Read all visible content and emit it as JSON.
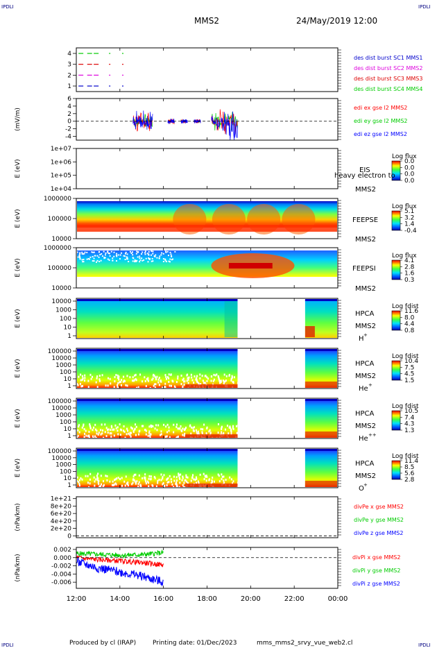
{
  "corner_label": "IPDLI",
  "header": {
    "spacecraft": "MMS2",
    "date": "24/May/2019 12:00"
  },
  "footer": {
    "producer": "Produced by cl (IRAP)",
    "printing_date": "Printing date: 01/Dec/2023",
    "script_name": "mms_mms2_srvy_vue_web2.cl"
  },
  "x_axis": {
    "ticks": [
      "12:00",
      "14:00",
      "16:00",
      "18:00",
      "20:00",
      "22:00",
      "00:00"
    ],
    "range_hours": [
      12,
      24
    ]
  },
  "colors": {
    "mms1": "#0000cc",
    "mms2": "#dd00dd",
    "mms3": "#dd0000",
    "mms4": "#00cc00",
    "ex": "#ff0000",
    "ey": "#00cc00",
    "ez": "#0000ff"
  },
  "panels": {
    "burst": {
      "yticks": [
        "4",
        "3",
        "2",
        "1"
      ],
      "legend": [
        {
          "text": "des dist burst SC1 MMS1",
          "color": "#0000cc"
        },
        {
          "text": "des dist burst SC2 MMS2",
          "color": "#dd00dd"
        },
        {
          "text": "des dist burst SC3 MMS3",
          "color": "#dd0000"
        },
        {
          "text": "des dist burst SC4 MMS4",
          "color": "#00cc00"
        }
      ]
    },
    "efield": {
      "ylabel": "(mV/m)",
      "yticks": [
        "6",
        "4",
        "2",
        "0",
        "-2",
        "-4"
      ],
      "legend": [
        {
          "text": "edi ex gse l2 MMS2",
          "color": "#ff0000"
        },
        {
          "text": "edi ey gse l2 MMS2",
          "color": "#00cc00"
        },
        {
          "text": "edi ez gse l2 MMS2",
          "color": "#0000ff"
        }
      ]
    },
    "eis": {
      "ylabel": "E (eV)",
      "yticks": [
        "1e+07",
        "1e+06",
        "1e+05",
        "1e+04"
      ],
      "instrument": "EIS",
      "spacecraft": "MMS2",
      "overlay_text": "heavy electron to",
      "colorbar_title": "Log flux",
      "colorbar_ticks": [
        "0.0",
        "0.0",
        "0.0",
        "0.0"
      ]
    },
    "feepse": {
      "ylabel": "E (eV)",
      "yticks": [
        "1000000",
        "100000",
        "10000"
      ],
      "instrument": "FEEPSE",
      "spacecraft": "MMS2",
      "colorbar_title": "Log flux",
      "colorbar_ticks": [
        "5.1",
        "3.2",
        "1.4",
        "-0.4"
      ]
    },
    "feepsi": {
      "ylabel": "E (eV)",
      "yticks": [
        "1000000",
        "100000",
        "10000"
      ],
      "instrument": "FEEPSI",
      "spacecraft": "MMS2",
      "colorbar_title": "Log flux",
      "colorbar_ticks": [
        "4.1",
        "2.8",
        "1.6",
        "0.3"
      ]
    },
    "hpca_h": {
      "ylabel": "E (eV)",
      "yticks": [
        "10000",
        "1000",
        "100",
        "10",
        "1"
      ],
      "instrument": "HPCA",
      "spacecraft": "MMS2",
      "species": "H",
      "charge": "+",
      "colorbar_title": "Log fdist",
      "colorbar_ticks": [
        "11.6",
        "8.0",
        "4.4",
        "0.8"
      ]
    },
    "hpca_he": {
      "ylabel": "E (eV)",
      "yticks": [
        "100000",
        "10000",
        "1000",
        "100",
        "10",
        "1"
      ],
      "instrument": "HPCA",
      "spacecraft": "MMS2",
      "species": "He",
      "charge": "+",
      "colorbar_title": "Log fdist",
      "colorbar_ticks": [
        "10.4",
        "7.5",
        "4.5",
        "1.5"
      ]
    },
    "hpca_he2": {
      "ylabel": "E (eV)",
      "yticks": [
        "100000",
        "10000",
        "1000",
        "100",
        "10",
        "1"
      ],
      "instrument": "HPCA",
      "spacecraft": "MMS2",
      "species": "He",
      "charge": "++",
      "colorbar_title": "Log fdist",
      "colorbar_ticks": [
        "10.5",
        "7.4",
        "4.3",
        "1.3"
      ]
    },
    "hpca_o": {
      "ylabel": "E (eV)",
      "yticks": [
        "100000",
        "10000",
        "1000",
        "100",
        "10",
        "1"
      ],
      "instrument": "HPCA",
      "spacecraft": "MMS2",
      "species": "O",
      "charge": "+",
      "colorbar_title": "Log fdist",
      "colorbar_ticks": [
        "11.4",
        "8.5",
        "5.6",
        "2.8"
      ]
    },
    "divpe": {
      "ylabel": "(nPa/km)",
      "yticks": [
        "1e+21",
        "8e+20",
        "6e+20",
        "4e+20",
        "2e+20",
        "0"
      ],
      "legend": [
        {
          "text": "divPe x gse MMS2",
          "color": "#ff0000"
        },
        {
          "text": "divPe y gse MMS2",
          "color": "#00cc00"
        },
        {
          "text": "divPe z gse MMS2",
          "color": "#0000ff"
        }
      ]
    },
    "divpi": {
      "ylabel": "(nPa/km)",
      "yticks": [
        "0.002",
        "0.000",
        "-0.002",
        "-0.004",
        "-0.006"
      ],
      "legend": [
        {
          "text": "divPi x gse MMS2",
          "color": "#ff0000"
        },
        {
          "text": "divPi y gse MMS2",
          "color": "#00cc00"
        },
        {
          "text": "divPi z gse MMS2",
          "color": "#0000ff"
        }
      ]
    }
  },
  "chart_data": [
    {
      "type": "scatter",
      "title": "",
      "series": [
        {
          "name": "des dist burst SC1 MMS1",
          "y": 1,
          "x_hours": [
            12.1,
            12.5,
            12.8,
            13.5,
            14.1
          ]
        },
        {
          "name": "des dist burst SC2 MMS2",
          "y": 2,
          "x_hours": [
            12.1,
            12.5,
            12.8,
            13.5,
            14.1
          ]
        },
        {
          "name": "des dist burst SC3 MMS3",
          "y": 3,
          "x_hours": [
            12.1,
            12.5,
            12.8,
            13.5,
            14.1
          ]
        },
        {
          "name": "des dist burst SC4 MMS4",
          "y": 4,
          "x_hours": [
            12.1,
            12.5,
            12.8,
            13.5,
            14.1
          ]
        }
      ],
      "ylim": [
        0.5,
        4.5
      ]
    },
    {
      "type": "line",
      "ylabel": "(mV/m)",
      "ylim": [
        -5,
        6
      ],
      "x_hours_range": [
        14.6,
        19.4
      ],
      "series": [
        {
          "name": "edi ex gse l2 MMS2"
        },
        {
          "name": "edi ey gse l2 MMS2"
        },
        {
          "name": "edi ez gse l2 MMS2"
        }
      ]
    },
    {
      "type": "heatmap",
      "ylabel": "E (eV)",
      "instrument": "EIS",
      "ylim_log10": [
        4,
        7
      ]
    },
    {
      "type": "heatmap",
      "ylabel": "E (eV)",
      "instrument": "FEEPSE",
      "ylim_log10": [
        4,
        6
      ],
      "clim": [
        -0.4,
        5.1
      ]
    },
    {
      "type": "heatmap",
      "ylabel": "E (eV)",
      "instrument": "FEEPSI",
      "ylim_log10": [
        4,
        6
      ],
      "clim": [
        0.3,
        4.1
      ]
    },
    {
      "type": "heatmap",
      "ylabel": "E (eV)",
      "instrument": "HPCA H+",
      "ylim_log10": [
        0,
        4.4
      ],
      "data_gap_hours": [
        19.4,
        22.5
      ],
      "clim": [
        0.8,
        11.6
      ]
    },
    {
      "type": "heatmap",
      "ylabel": "E (eV)",
      "instrument": "HPCA He+",
      "ylim_log10": [
        0,
        5
      ],
      "data_gap_hours": [
        19.4,
        22.5
      ],
      "clim": [
        1.5,
        10.4
      ]
    },
    {
      "type": "heatmap",
      "ylabel": "E (eV)",
      "instrument": "HPCA He++",
      "ylim_log10": [
        0,
        5
      ],
      "data_gap_hours": [
        19.4,
        22.5
      ],
      "clim": [
        1.3,
        10.5
      ]
    },
    {
      "type": "heatmap",
      "ylabel": "E (eV)",
      "instrument": "HPCA O+",
      "ylim_log10": [
        0,
        5
      ],
      "data_gap_hours": [
        19.4,
        22.5
      ],
      "clim": [
        2.8,
        11.4
      ]
    },
    {
      "type": "line",
      "ylabel": "(nPa/km)",
      "ylim": [
        -5e+19,
        1.05e+21
      ],
      "series": [
        {
          "name": "divPe x gse MMS2"
        },
        {
          "name": "divPe y gse MMS2"
        },
        {
          "name": "divPe z gse MMS2"
        }
      ]
    },
    {
      "type": "line",
      "ylabel": "(nPa/km)",
      "ylim": [
        -0.0075,
        0.0025
      ],
      "x_hours_range": [
        12,
        16
      ],
      "series": [
        {
          "name": "divPi x gse MMS2",
          "x_hours": [
            12,
            13,
            14,
            15,
            16
          ],
          "y": [
            0.0,
            -0.0005,
            -0.0008,
            -0.0012,
            -0.0018
          ]
        },
        {
          "name": "divPi y gse MMS2",
          "x_hours": [
            12,
            13,
            14,
            15,
            16
          ],
          "y": [
            0.001,
            0.0008,
            0.0006,
            0.0007,
            0.0012
          ]
        },
        {
          "name": "divPi z gse MMS2",
          "x_hours": [
            12,
            13,
            14,
            15,
            16
          ],
          "y": [
            -0.001,
            -0.0025,
            -0.0035,
            -0.0045,
            -0.006
          ]
        }
      ]
    }
  ]
}
